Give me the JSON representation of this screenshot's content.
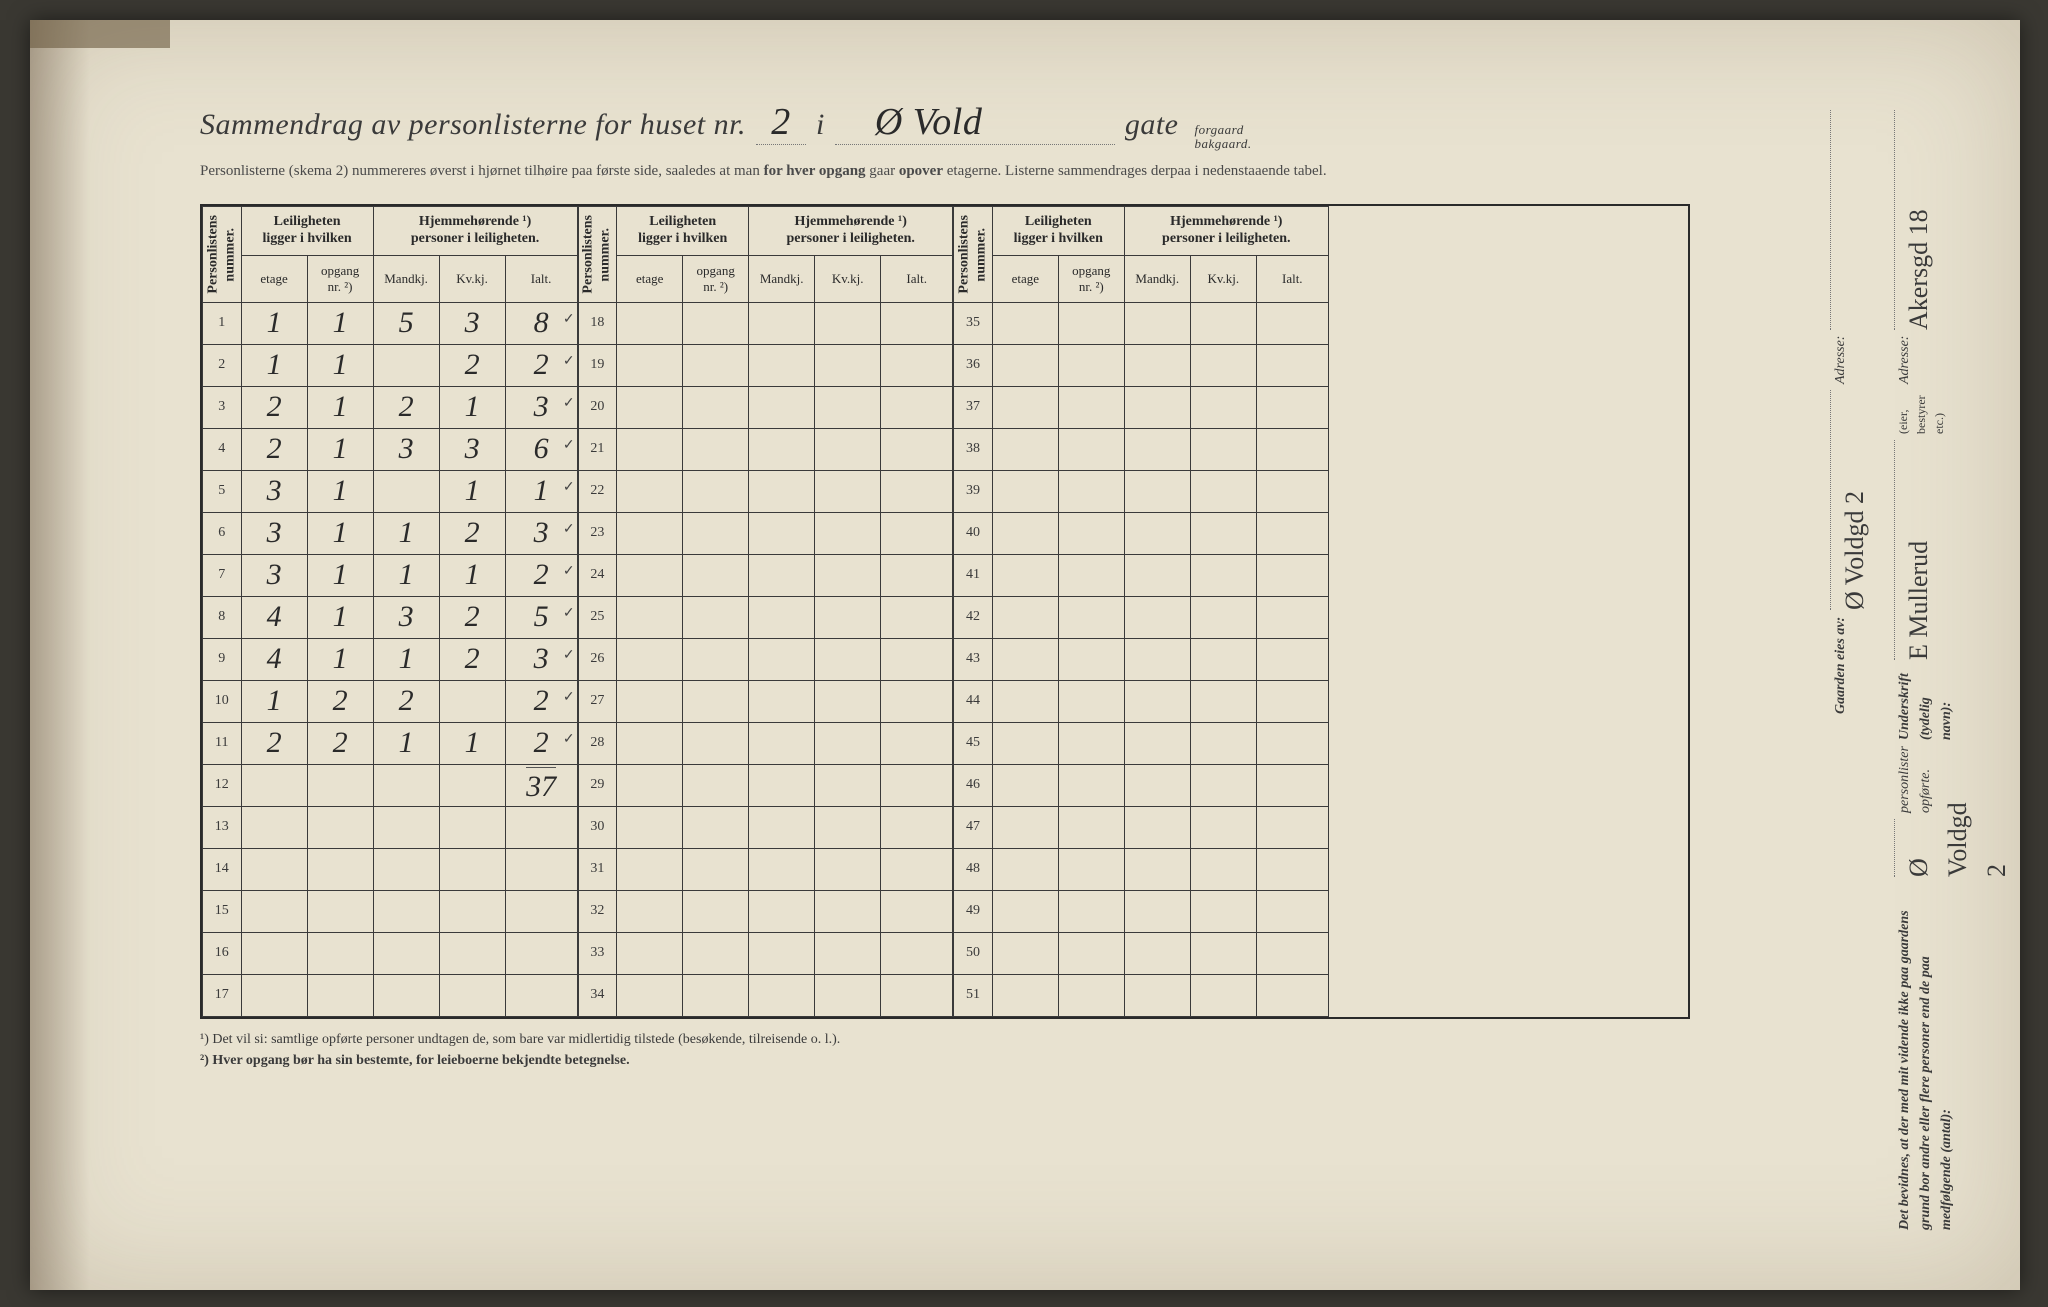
{
  "header": {
    "title_prefix": "Sammendrag av personlisterne for huset nr.",
    "house_nr": "2",
    "in_word": "i",
    "street_name": "Ø Vold",
    "gate_word": "gate",
    "gate_opt_1": "forgaard",
    "gate_opt_2": "bakgaard.",
    "sub_text_1": "Personlisterne (skema 2) nummereres øverst i hjørnet tilhøire paa første side, saaledes at man ",
    "sub_text_bold": "for hver opgang",
    "sub_text_2": " gaar ",
    "sub_text_bold2": "opover",
    "sub_text_3": " etagerne.  Listerne sammendrages derpaa i nedenstaaende tabel."
  },
  "columns": {
    "personlistens_nummer": "Personlistens\nnummer.",
    "leilighet_group": "Leiligheten\nligger i hvilken",
    "hjemme_group": "Hjemmehørende ¹)\npersoner i leiligheten.",
    "etage": "etage",
    "opgang": "opgang\nnr. ²)",
    "mandkj": "Mandkj.",
    "kvkj": "Kv.kj.",
    "ialt": "Ialt."
  },
  "rows_block1": [
    {
      "n": "1",
      "etage": "1",
      "opg": "1",
      "m": "5",
      "k": "3",
      "i": "8",
      "tick": true
    },
    {
      "n": "2",
      "etage": "1",
      "opg": "1",
      "m": "",
      "k": "2",
      "i": "2",
      "tick": true
    },
    {
      "n": "3",
      "etage": "2",
      "opg": "1",
      "m": "2",
      "k": "1",
      "i": "3",
      "tick": true
    },
    {
      "n": "4",
      "etage": "2",
      "opg": "1",
      "m": "3",
      "k": "3",
      "i": "6",
      "tick": true
    },
    {
      "n": "5",
      "etage": "3",
      "opg": "1",
      "m": "",
      "k": "1",
      "i": "1",
      "tick": true
    },
    {
      "n": "6",
      "etage": "3",
      "opg": "1",
      "m": "1",
      "k": "2",
      "i": "3",
      "tick": true
    },
    {
      "n": "7",
      "etage": "3",
      "opg": "1",
      "m": "1",
      "k": "1",
      "i": "2",
      "tick": true
    },
    {
      "n": "8",
      "etage": "4",
      "opg": "1",
      "m": "3",
      "k": "2",
      "i": "5",
      "tick": true
    },
    {
      "n": "9",
      "etage": "4",
      "opg": "1",
      "m": "1",
      "k": "2",
      "i": "3",
      "tick": true
    },
    {
      "n": "10",
      "etage": "1",
      "opg": "2",
      "m": "2",
      "k": "",
      "i": "2",
      "tick": true
    },
    {
      "n": "11",
      "etage": "2",
      "opg": "2",
      "m": "1",
      "k": "1",
      "i": "2",
      "tick": true
    },
    {
      "n": "12",
      "etage": "",
      "opg": "",
      "m": "",
      "k": "",
      "i": "",
      "tick": false
    },
    {
      "n": "13",
      "etage": "",
      "opg": "",
      "m": "",
      "k": "",
      "i": "",
      "tick": false
    },
    {
      "n": "14",
      "etage": "",
      "opg": "",
      "m": "",
      "k": "",
      "i": "",
      "tick": false
    },
    {
      "n": "15",
      "etage": "",
      "opg": "",
      "m": "",
      "k": "",
      "i": "",
      "tick": false
    },
    {
      "n": "16",
      "etage": "",
      "opg": "",
      "m": "",
      "k": "",
      "i": "",
      "tick": false
    },
    {
      "n": "17",
      "etage": "",
      "opg": "",
      "m": "",
      "k": "",
      "i": "",
      "tick": false
    }
  ],
  "rows_block2_start": 18,
  "rows_block3_start": 35,
  "total_under_12": "37",
  "footnotes": {
    "f1": "¹) Det vil si: samtlige opførte personer undtagen de, som bare var midlertidig tilstede (besøkende, tilreisende o. l.).",
    "f2": "²) Hver opgang bør ha sin bestemte, for leieboerne bekjendte betegnelse."
  },
  "side": {
    "bevidnes": "Det bevidnes, at der med mit vidende ikke paa gaardens grund bor andre eller flere personer end de paa medfølgende (antal):",
    "personlister": "personlister opførte.",
    "underskrift_label": "Underskrift (tydelig navn):",
    "underskrift_value": "Ø Voldgd 2",
    "underskrift_value2": "E Mullerud",
    "eier_label": "(eier, bestyrer etc.)",
    "adresse_label": "Adresse:",
    "adresse_value": "Akersgd 18",
    "gaarden_label": "Gaarden eies av:",
    "gaarden_value": "Ø Voldgd 2",
    "adresse2_label": "Adresse:"
  },
  "colors": {
    "paper": "#e8e2d0",
    "ink": "#2a2a2a",
    "background": "#3a3832"
  }
}
